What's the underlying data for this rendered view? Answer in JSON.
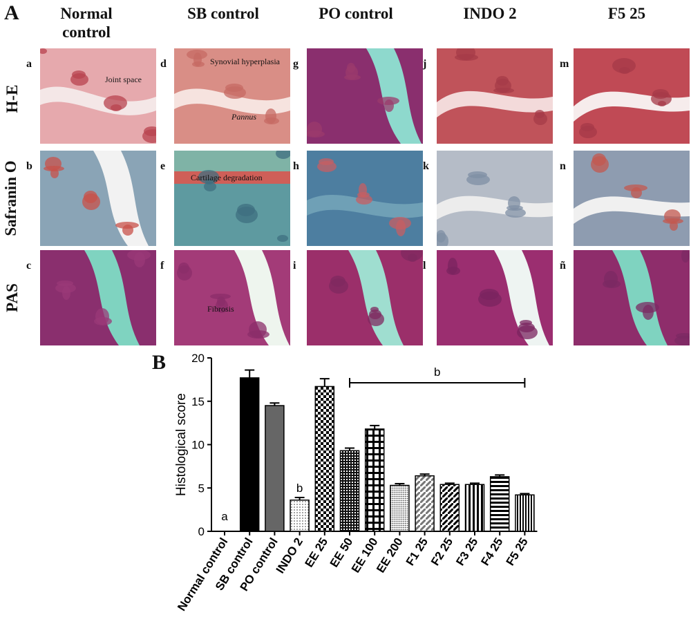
{
  "figure": {
    "panel_a_letter": "A",
    "panel_b_letter": "B",
    "columns": [
      "Normal control",
      "SB control",
      "PO control",
      "INDO 2",
      "F5 25"
    ],
    "rows": [
      "H-E",
      "Safranin O",
      "PAS"
    ],
    "tile_letters": [
      [
        "a",
        "d",
        "g",
        "j",
        "m"
      ],
      [
        "b",
        "e",
        "h",
        "k",
        "n"
      ],
      [
        "c",
        "f",
        "i",
        "l",
        "ñ"
      ]
    ],
    "annotations": {
      "joint_space": "Joint space",
      "synovial_hyperplasia": "Synovial hyperplasia",
      "pannus": "Pannus",
      "cartilage_degradation": "Cartilage degradation",
      "fibrosis": "Fibrosis"
    },
    "colors": {
      "he_tissue": "#b8434f",
      "he_light": "#e6a9ad",
      "safranin_blue": "#6a8ea0",
      "safranin_red": "#c8524a",
      "pas_purple": "#8a2f6e",
      "pas_space": "#7fd3c0",
      "he_space": "#8ed9cd",
      "bar_black": "#000000",
      "bar_gray": "#666666"
    }
  },
  "chart_data": {
    "type": "bar",
    "ylabel": "Histological score",
    "ylim": [
      0,
      20
    ],
    "yticks": [
      0,
      5,
      10,
      15,
      20
    ],
    "categories": [
      "Normal control",
      "SB control",
      "PO control",
      "INDO 2",
      "EE 25",
      "EE 50",
      "EE 100",
      "EE 200",
      "F1 25",
      "F2 25",
      "F3 25",
      "F4 25",
      "F5 25"
    ],
    "values": [
      0,
      17.7,
      14.5,
      3.6,
      16.7,
      9.3,
      11.8,
      5.3,
      6.4,
      5.4,
      5.4,
      6.3,
      4.2
    ],
    "errors": [
      0,
      0.9,
      0.3,
      0.3,
      0.9,
      0.3,
      0.4,
      0.2,
      0.2,
      0.15,
      0.15,
      0.2,
      0.15
    ],
    "patterns": [
      "none",
      "solid-black",
      "solid-gray",
      "dots",
      "checker",
      "grid-fine",
      "grid-white",
      "dots-dense",
      "diag-gray",
      "diag-black",
      "vertical",
      "horizontal",
      "vertical-dense"
    ],
    "significance": [
      {
        "category": "Normal control",
        "label": "a"
      },
      {
        "category": "INDO 2",
        "label": "b"
      }
    ],
    "bracket": {
      "from": "EE 50",
      "to": "F5 25",
      "label": "b"
    }
  }
}
